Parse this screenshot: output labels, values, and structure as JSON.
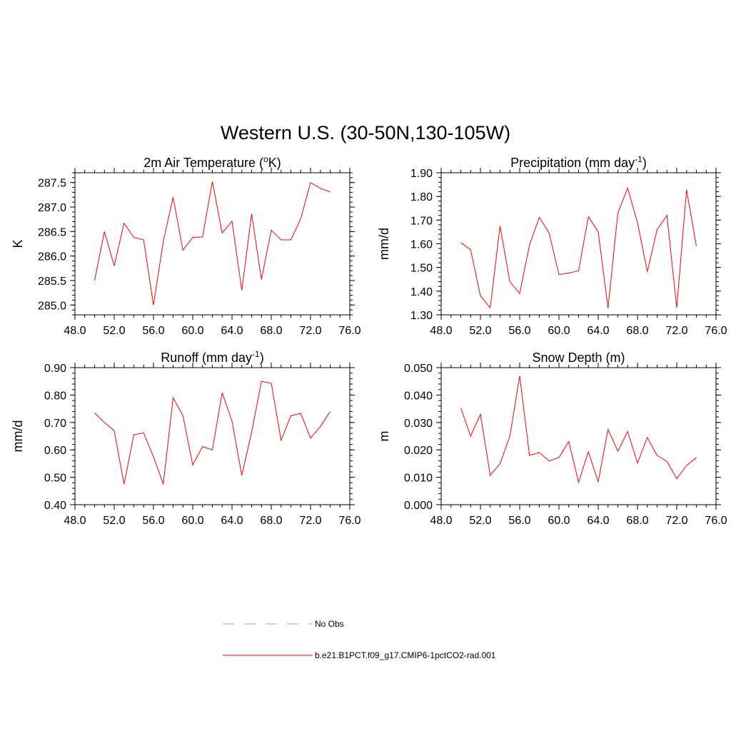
{
  "figure": {
    "title": "Western U.S. (30-50N,130-105W)"
  },
  "legend": {
    "items": [
      {
        "label": "No Obs",
        "color": "#9999ff",
        "dash": true
      },
      {
        "label": "b.e21.B1PCT.f09_g17.CMIP6-1pctCO2-rad.001",
        "color": "#ff0000",
        "dash": false
      }
    ]
  },
  "chart_data": [
    {
      "type": "line",
      "title": "2m Air Temperature (",
      "title_sup": "o",
      "title_after": "K)",
      "ylabel": "K",
      "xlim": [
        48,
        76
      ],
      "ylim": [
        284.8,
        287.7
      ],
      "xticks": [
        48,
        52,
        56,
        60,
        64,
        68,
        72,
        76
      ],
      "xtick_labels": [
        "48.0",
        "52.0",
        "56.0",
        "60.0",
        "64.0",
        "68.0",
        "72.0",
        "76.0"
      ],
      "yticks": [
        285.0,
        285.5,
        286.0,
        286.5,
        287.0,
        287.5
      ],
      "ytick_labels": [
        "285.0",
        "285.5",
        "286.0",
        "286.5",
        "287.0",
        "287.5"
      ],
      "yminor_step": 0.1,
      "color": "#ff0000",
      "x": [
        50,
        51,
        52,
        53,
        54,
        55,
        56,
        57,
        58,
        59,
        60,
        61,
        62,
        63,
        64,
        65,
        66,
        67,
        68,
        69,
        70,
        71,
        72,
        73,
        74
      ],
      "values": [
        285.5,
        286.5,
        285.8,
        286.67,
        286.38,
        286.33,
        285.0,
        286.3,
        287.2,
        286.12,
        286.38,
        286.39,
        287.52,
        286.47,
        286.71,
        285.3,
        286.86,
        285.52,
        286.53,
        286.33,
        286.33,
        286.76,
        287.5,
        287.38,
        287.31
      ]
    },
    {
      "type": "line",
      "title": "Precipitation (mm day",
      "title_sup": "-1",
      "title_after": ")",
      "ylabel": "mm/d",
      "xlim": [
        48,
        76
      ],
      "ylim": [
        1.3,
        1.9
      ],
      "xticks": [
        48,
        52,
        56,
        60,
        64,
        68,
        72,
        76
      ],
      "xtick_labels": [
        "48.0",
        "52.0",
        "56.0",
        "60.0",
        "64.0",
        "68.0",
        "72.0",
        "76.0"
      ],
      "yticks": [
        1.3,
        1.4,
        1.5,
        1.6,
        1.7,
        1.8,
        1.9
      ],
      "ytick_labels": [
        "1.30",
        "1.40",
        "1.50",
        "1.60",
        "1.70",
        "1.80",
        "1.90"
      ],
      "yminor_step": 0.02,
      "color": "#ff0000",
      "x": [
        50,
        51,
        52,
        53,
        54,
        55,
        56,
        57,
        58,
        59,
        60,
        61,
        62,
        63,
        64,
        65,
        66,
        67,
        68,
        69,
        70,
        71,
        72,
        73,
        74
      ],
      "values": [
        1.605,
        1.575,
        1.38,
        1.33,
        1.675,
        1.44,
        1.39,
        1.595,
        1.712,
        1.645,
        1.47,
        1.476,
        1.486,
        1.715,
        1.65,
        1.328,
        1.73,
        1.835,
        1.69,
        1.482,
        1.66,
        1.72,
        1.33,
        1.828,
        1.59
      ]
    },
    {
      "type": "line",
      "title": "Runoff (mm day",
      "title_sup": "-1",
      "title_after": ")",
      "ylabel": "mm/d",
      "xlim": [
        48,
        76
      ],
      "ylim": [
        0.4,
        0.9
      ],
      "xticks": [
        48,
        52,
        56,
        60,
        64,
        68,
        72,
        76
      ],
      "xtick_labels": [
        "48.0",
        "52.0",
        "56.0",
        "60.0",
        "64.0",
        "68.0",
        "72.0",
        "76.0"
      ],
      "yticks": [
        0.4,
        0.5,
        0.6,
        0.7,
        0.8,
        0.9
      ],
      "ytick_labels": [
        "0.40",
        "0.50",
        "0.60",
        "0.70",
        "0.80",
        "0.90"
      ],
      "yminor_step": 0.02,
      "color": "#ff0000",
      "x": [
        50,
        51,
        52,
        53,
        54,
        55,
        56,
        57,
        58,
        59,
        60,
        61,
        62,
        63,
        64,
        65,
        66,
        67,
        68,
        69,
        70,
        71,
        72,
        73,
        74
      ],
      "values": [
        0.735,
        0.7,
        0.67,
        0.475,
        0.655,
        0.662,
        0.575,
        0.475,
        0.79,
        0.725,
        0.545,
        0.612,
        0.6,
        0.808,
        0.705,
        0.507,
        0.665,
        0.85,
        0.843,
        0.635,
        0.725,
        0.733,
        0.643,
        0.685,
        0.74
      ]
    },
    {
      "type": "line",
      "title": "Snow Depth (m)",
      "title_sup": "",
      "title_after": "",
      "ylabel": "m",
      "xlim": [
        48,
        76
      ],
      "ylim": [
        0.0,
        0.05
      ],
      "xticks": [
        48,
        52,
        56,
        60,
        64,
        68,
        72,
        76
      ],
      "xtick_labels": [
        "48.0",
        "52.0",
        "56.0",
        "60.0",
        "64.0",
        "68.0",
        "72.0",
        "76.0"
      ],
      "yticks": [
        0.0,
        0.01,
        0.02,
        0.03,
        0.04,
        0.05
      ],
      "ytick_labels": [
        "0.000",
        "0.010",
        "0.020",
        "0.030",
        "0.040",
        "0.050"
      ],
      "yminor_step": 0.002,
      "color": "#ff0000",
      "x": [
        50,
        51,
        52,
        53,
        54,
        55,
        56,
        57,
        58,
        59,
        60,
        61,
        62,
        63,
        64,
        65,
        66,
        67,
        68,
        69,
        70,
        71,
        72,
        73,
        74
      ],
      "values": [
        0.0353,
        0.025,
        0.033,
        0.0107,
        0.015,
        0.025,
        0.047,
        0.018,
        0.019,
        0.016,
        0.0172,
        0.023,
        0.0082,
        0.0193,
        0.0083,
        0.0275,
        0.0195,
        0.0267,
        0.0152,
        0.0245,
        0.018,
        0.0158,
        0.0095,
        0.0143,
        0.0172
      ]
    }
  ]
}
